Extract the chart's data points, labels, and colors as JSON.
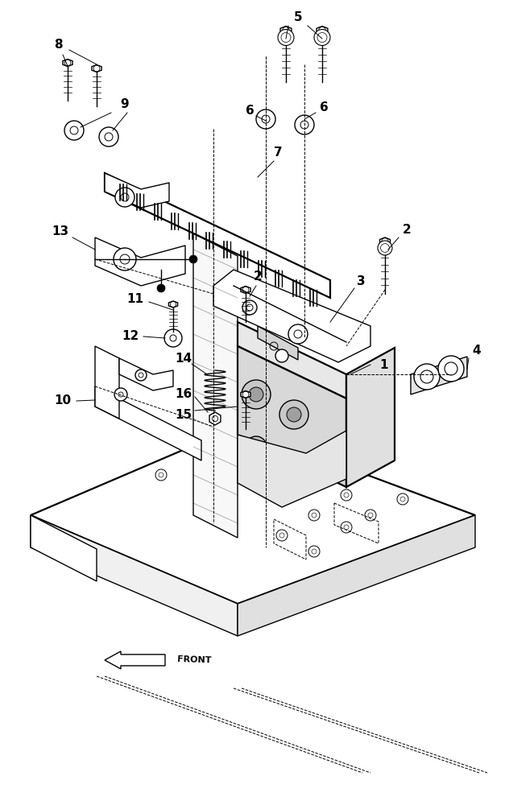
{
  "background_color": "#ffffff",
  "fig_width": 6.32,
  "fig_height": 10.0,
  "dpi": 100,
  "black": "#000000",
  "lw": 1.0,
  "lw_thick": 1.6,
  "lw_thin": 0.7
}
